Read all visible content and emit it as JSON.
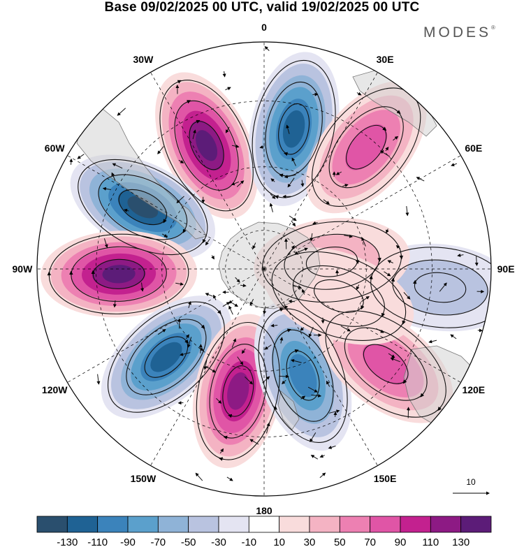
{
  "title": "Base 09/02/2025 00 UTC, valid 19/02/2025 00 UTC",
  "brand": "MODES",
  "brand_mark": "®",
  "meridian_labels": [
    {
      "text": "0",
      "lon": 0
    },
    {
      "text": "30E",
      "lon": 30
    },
    {
      "text": "60E",
      "lon": 60
    },
    {
      "text": "90E",
      "lon": 90
    },
    {
      "text": "120E",
      "lon": 120
    },
    {
      "text": "150E",
      "lon": 150
    },
    {
      "text": "180",
      "lon": 180
    },
    {
      "text": "150W",
      "lon": -150
    },
    {
      "text": "120W",
      "lon": -120
    },
    {
      "text": "90W",
      "lon": -90
    },
    {
      "text": "60W",
      "lon": -60
    },
    {
      "text": "30W",
      "lon": -30
    }
  ],
  "vector_reference": "10",
  "colorbar": {
    "colors": [
      "#2a4f6e",
      "#1f6294",
      "#3b83bb",
      "#5ba0cc",
      "#8fb3d7",
      "#b9c3e0",
      "#e4e4f2",
      "#ffffff",
      "#f9dcdc",
      "#f4b3c3",
      "#ed80b2",
      "#e055a6",
      "#c3218f",
      "#8d1a84",
      "#5c1c78"
    ],
    "ticks": [
      "-130",
      "-110",
      "-90",
      "-70",
      "-50",
      "-30",
      "-10",
      "10",
      "30",
      "50",
      "70",
      "90",
      "110",
      "130"
    ]
  },
  "anomaly_cells": [
    {
      "lon": -25,
      "r": 0.6,
      "value": 130
    },
    {
      "lon": 12,
      "r": 0.63,
      "value": -120
    },
    {
      "lon": 40,
      "r": 0.7,
      "value": 85
    },
    {
      "lon": -63,
      "r": 0.6,
      "value": -130
    },
    {
      "lon": -92,
      "r": 0.64,
      "value": 130
    },
    {
      "lon": -132,
      "r": 0.58,
      "value": -120
    },
    {
      "lon": -168,
      "r": 0.55,
      "value": 125
    },
    {
      "lon": 160,
      "r": 0.5,
      "value": -95
    },
    {
      "lon": 128,
      "r": 0.68,
      "value": 70
    },
    {
      "lon": 96,
      "r": 0.78,
      "value": -40
    },
    {
      "lon": 84,
      "r": 0.3,
      "value": 35
    },
    {
      "lon": 110,
      "r": 0.35,
      "value": 25
    }
  ]
}
